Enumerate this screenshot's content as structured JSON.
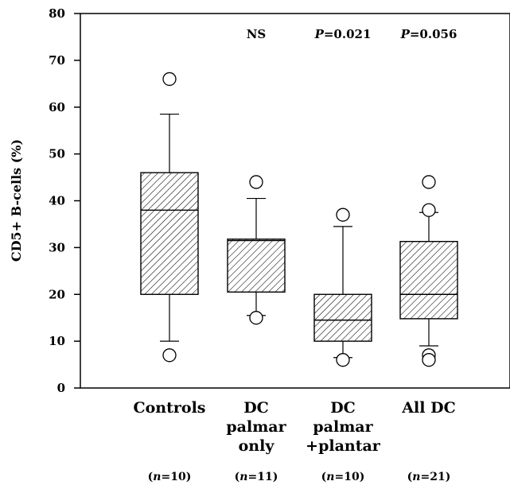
{
  "chart_data": {
    "type": "box",
    "ylabel": "CD5+ B-cells (%)",
    "xlabel": "",
    "ylim": [
      0,
      80
    ],
    "yticks": [
      0,
      10,
      20,
      30,
      40,
      50,
      60,
      70,
      80
    ],
    "grid": false,
    "groups": [
      {
        "label_lines": [
          "Controls"
        ],
        "n_label": "(n=10)",
        "annotation": "",
        "whisker_low": 10,
        "q1": 20,
        "median": 38,
        "q3": 46,
        "whisker_high": 58.5,
        "outliers": [
          66,
          7
        ]
      },
      {
        "label_lines": [
          "DC",
          "palmar",
          "only"
        ],
        "n_label": "(n=11)",
        "annotation": "NS",
        "whisker_low": 15.5,
        "q1": 20.5,
        "median": 31.5,
        "q3": 31.8,
        "whisker_high": 40.5,
        "outliers": [
          44,
          15
        ]
      },
      {
        "label_lines": [
          "DC",
          "palmar",
          "+plantar"
        ],
        "n_label": "(n=10)",
        "annotation": "P=0.021",
        "whisker_low": 6.5,
        "q1": 10,
        "median": 14.5,
        "q3": 20,
        "whisker_high": 34.5,
        "outliers": [
          37,
          6
        ]
      },
      {
        "label_lines": [
          "All DC"
        ],
        "n_label": "(n=21)",
        "annotation": "P=0.056",
        "whisker_low": 9,
        "q1": 14.8,
        "median": 20,
        "q3": 31.3,
        "whisker_high": 37.5,
        "outliers": [
          44,
          38,
          7,
          6
        ]
      }
    ]
  }
}
